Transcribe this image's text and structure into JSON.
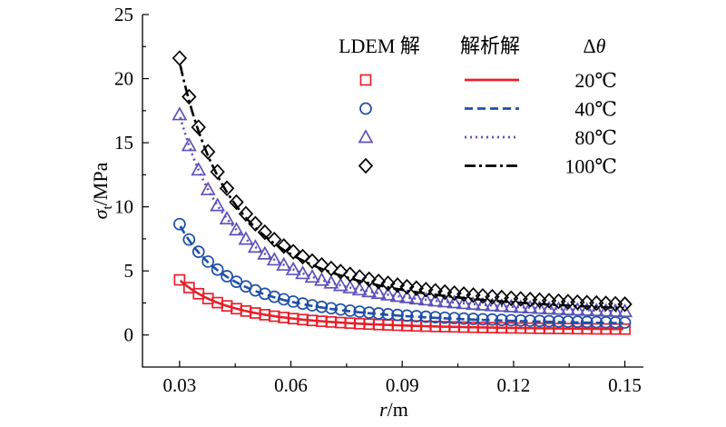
{
  "chart_data": {
    "type": "line",
    "title": "",
    "xlabel_var": "r",
    "xlabel_unit": "/m",
    "ylabel_var": "σ",
    "ylabel_sub": "t",
    "ylabel_unit": "/MPa",
    "xlim": [
      0.02,
      0.155
    ],
    "ylim": [
      -2.5,
      25
    ],
    "x_ticks": [
      0.03,
      0.06,
      0.09,
      0.12,
      0.15
    ],
    "x_tick_labels": [
      "0.03",
      "0.06",
      "0.09",
      "0.12",
      "0.15"
    ],
    "y_ticks": [
      0,
      5,
      10,
      15,
      20,
      25
    ],
    "y_tick_labels": [
      "0",
      "5",
      "10",
      "15",
      "20",
      "25"
    ],
    "grid": false,
    "legend_position": "top-right",
    "legend_headers": [
      "LDEM 解",
      "解析解",
      "Δθ"
    ],
    "series": [
      {
        "name": "20℃",
        "color": "#e8202a",
        "marker": "square",
        "line": "solid",
        "a": 0.0036,
        "lc": 0.3,
        "mc": 0.3,
        "fit": [
          [
            0.03,
            4.3
          ],
          [
            0.09,
            0.7
          ],
          [
            0.15,
            0.3
          ]
        ]
      },
      {
        "name": "40℃",
        "color": "#1f4fa8",
        "marker": "circle",
        "line": "dashed",
        "a": 0.0072,
        "lc": 0.6,
        "mc": 0.65,
        "fit": [
          [
            0.03,
            8.6
          ],
          [
            0.09,
            1.4
          ],
          [
            0.15,
            0.65
          ]
        ]
      },
      {
        "name": "80℃",
        "color": "#5b52b8",
        "marker": "triangle",
        "line": "dotted",
        "a": 0.0144,
        "lc": 1.2,
        "mc": 1.2,
        "fit": [
          [
            0.03,
            17.2
          ],
          [
            0.09,
            2.8
          ],
          [
            0.15,
            1.2
          ]
        ]
      },
      {
        "name": "100℃",
        "color": "#000000",
        "marker": "diamond",
        "line": "dashdot",
        "a": 0.018,
        "lc": 1.3,
        "mc": 1.6,
        "fit": [
          [
            0.03,
            21.5
          ],
          [
            0.09,
            3.6
          ],
          [
            0.15,
            1.6
          ]
        ]
      }
    ]
  }
}
